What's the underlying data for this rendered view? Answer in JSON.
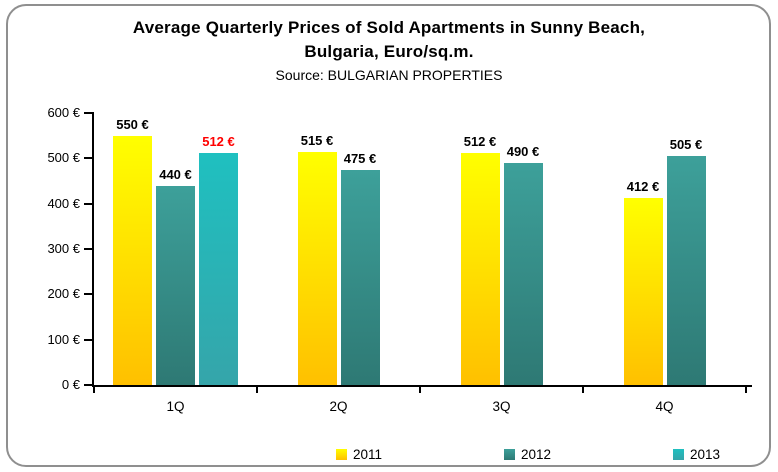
{
  "title": {
    "line1": "Average Quarterly Prices of Sold Apartments in Sunny Beach,",
    "line2": "Bulgaria, Euro/sq.m.",
    "source": "Source: BULGARIAN PROPERTIES"
  },
  "chart_data": {
    "type": "bar",
    "categories": [
      "1Q",
      "2Q",
      "3Q",
      "4Q"
    ],
    "series": [
      {
        "name": "2011",
        "values": [
          550,
          515,
          512,
          412
        ],
        "labels": [
          "550 €",
          "515 €",
          "512 €",
          "412 €"
        ],
        "label_colors": [
          "#000000",
          "#000000",
          "#000000",
          "#000000"
        ],
        "color_top": "#FFFF00",
        "color_bottom": "#FFC000"
      },
      {
        "name": "2012",
        "values": [
          440,
          475,
          490,
          505
        ],
        "labels": [
          "440 €",
          "475 €",
          "490 €",
          "505 €"
        ],
        "label_colors": [
          "#000000",
          "#000000",
          "#000000",
          "#000000"
        ],
        "color_top": "#3DA09A",
        "color_bottom": "#2E7974"
      },
      {
        "name": "2013",
        "values": [
          512,
          null,
          null,
          null
        ],
        "labels": [
          "512 €",
          null,
          null,
          null
        ],
        "label_colors": [
          "#FF0000",
          null,
          null,
          null
        ],
        "color_top": "#1FC0C0",
        "color_bottom": "#35A5AA"
      }
    ],
    "ylim": [
      0,
      600
    ],
    "yticks": [
      "0 €",
      "100 €",
      "200 €",
      "300 €",
      "400 €",
      "500 €",
      "600 €"
    ],
    "grid": false,
    "legend_position": "bottom",
    "legend_entries": [
      "2011",
      "2012",
      "2013"
    ]
  }
}
